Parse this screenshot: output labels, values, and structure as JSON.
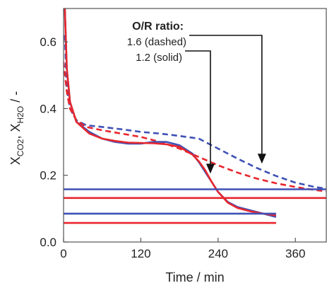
{
  "chart_data": {
    "type": "line",
    "xlabel": "Time / min",
    "ylabel": {
      "main": "X",
      "sub1": "CO2",
      "sep": ", X",
      "sub2": "H2O",
      "tail": " / -"
    },
    "xlim": [
      0,
      408
    ],
    "ylim": [
      0.0,
      0.7
    ],
    "x_ticks": [
      0,
      120,
      240,
      360
    ],
    "y_ticks": [
      0.0,
      0.2,
      0.4,
      0.6
    ],
    "x_tick_labels": [
      "0",
      "120",
      "240",
      "360"
    ],
    "y_tick_labels": [
      "0.0",
      "0.2",
      "0.4",
      "0.6"
    ],
    "grid": false,
    "colors": {
      "blue": "#3f51b5",
      "red": "#e8262d"
    },
    "annotation": {
      "title": "O/R ratio:",
      "dashed_label": "1.6 (dashed)",
      "solid_label": "1.2 (solid)"
    },
    "series": [
      {
        "color": "blue",
        "style": "dashed",
        "x": [
          2,
          5,
          10,
          20,
          35,
          60,
          90,
          120,
          150,
          180,
          210,
          240,
          270,
          300,
          330,
          360,
          390,
          408
        ],
        "y": [
          0.62,
          0.46,
          0.4,
          0.365,
          0.35,
          0.345,
          0.338,
          0.33,
          0.325,
          0.318,
          0.31,
          0.28,
          0.25,
          0.222,
          0.198,
          0.178,
          0.165,
          0.16
        ]
      },
      {
        "color": "red",
        "style": "dashed",
        "x": [
          0,
          5,
          10,
          20,
          35,
          60,
          90,
          120,
          150,
          180,
          210,
          240,
          270,
          300,
          330,
          360,
          390,
          408
        ],
        "y": [
          0.54,
          0.45,
          0.4,
          0.365,
          0.345,
          0.335,
          0.325,
          0.315,
          0.3,
          0.28,
          0.255,
          0.23,
          0.208,
          0.19,
          0.176,
          0.165,
          0.156,
          0.152
        ]
      },
      {
        "color": "blue",
        "style": "solid",
        "x": [
          2,
          5,
          10,
          20,
          40,
          60,
          80,
          100,
          120,
          140,
          160,
          180,
          200,
          210,
          220,
          230,
          240,
          255,
          270,
          290,
          310,
          330
        ],
        "y": [
          0.7,
          0.52,
          0.42,
          0.36,
          0.33,
          0.31,
          0.3,
          0.295,
          0.295,
          0.3,
          0.3,
          0.29,
          0.265,
          0.24,
          0.21,
          0.18,
          0.15,
          0.12,
          0.105,
          0.095,
          0.085,
          0.075
        ]
      },
      {
        "color": "red",
        "style": "solid",
        "x": [
          2,
          5,
          10,
          20,
          40,
          60,
          80,
          100,
          120,
          140,
          160,
          180,
          200,
          210,
          220,
          230,
          240,
          255,
          270,
          290,
          310,
          330
        ],
        "y": [
          0.7,
          0.52,
          0.42,
          0.36,
          0.325,
          0.31,
          0.303,
          0.298,
          0.297,
          0.296,
          0.293,
          0.285,
          0.262,
          0.242,
          0.215,
          0.18,
          0.15,
          0.118,
          0.102,
          0.092,
          0.085,
          0.08
        ]
      },
      {
        "color": "blue",
        "style": "solid",
        "kind": "horizontal-line",
        "x": [
          0,
          408
        ],
        "y": [
          0.158,
          0.158
        ]
      },
      {
        "color": "red",
        "style": "solid",
        "kind": "horizontal-line",
        "x": [
          0,
          408
        ],
        "y": [
          0.132,
          0.132
        ]
      },
      {
        "color": "blue",
        "style": "solid",
        "kind": "horizontal-line",
        "x": [
          0,
          330
        ],
        "y": [
          0.085,
          0.085
        ]
      },
      {
        "color": "red",
        "style": "solid",
        "kind": "horizontal-line",
        "x": [
          0,
          330
        ],
        "y": [
          0.057,
          0.057
        ]
      }
    ],
    "arrows": [
      {
        "label": "solid",
        "from": [
          228,
          0.575
        ],
        "to": [
          228,
          0.205
        ]
      },
      {
        "label": "dashed",
        "from": [
          308,
          0.61
        ],
        "to": [
          308,
          0.235
        ]
      }
    ]
  }
}
